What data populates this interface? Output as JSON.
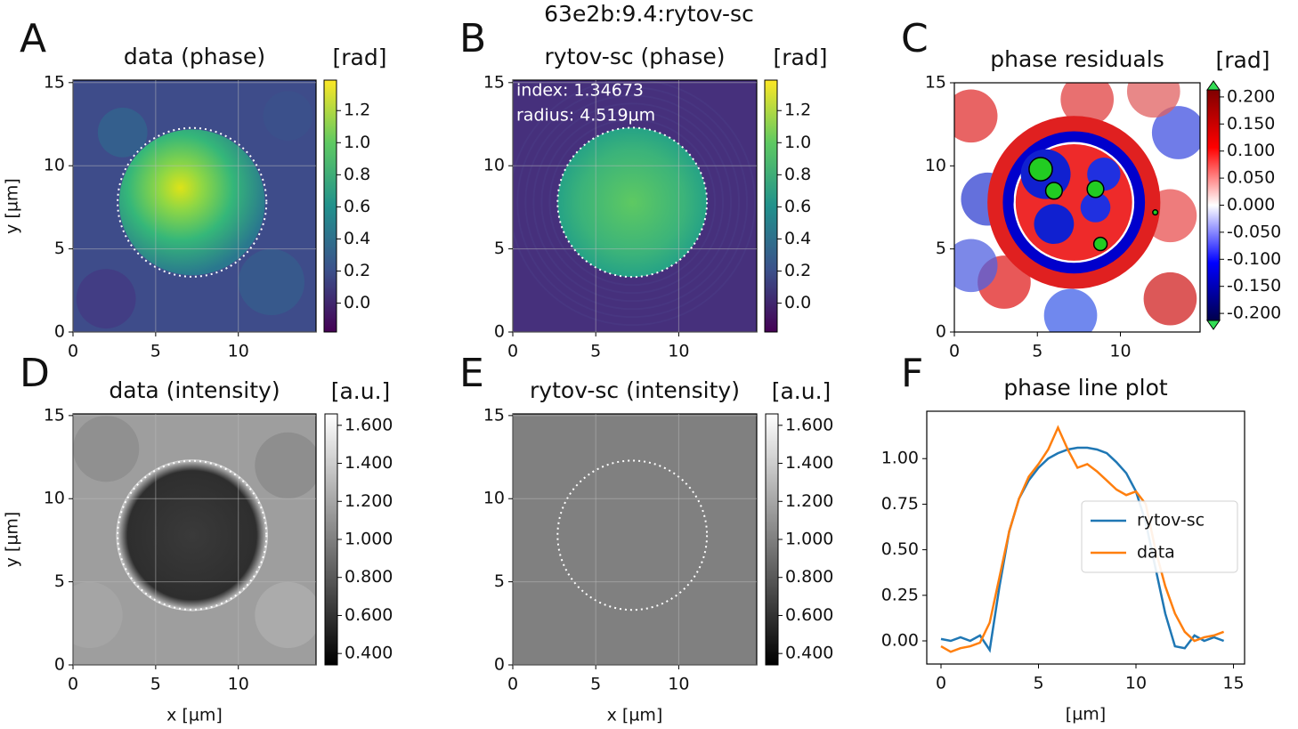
{
  "title": "63e2b:9.4:rytov-sc",
  "chart_data": [
    {
      "type": "image",
      "panel": "A",
      "title": "data (phase)",
      "ylabel": "y [µm]",
      "xlim": [
        0,
        14.7
      ],
      "ylim": [
        0,
        15.15
      ],
      "xticks": [
        0,
        5,
        10
      ],
      "yticks": [
        0,
        5,
        10,
        15
      ],
      "grid": true,
      "colormap": "viridis",
      "colorbar": {
        "label": "[rad]",
        "lim": [
          -0.18,
          1.39
        ],
        "ticks": [
          {
            "value": 0,
            "label": "0.0"
          },
          0.2,
          0.4,
          0.6,
          0.8,
          {
            "value": 1,
            "label": "1.0"
          },
          1.2
        ]
      }
    },
    {
      "type": "image",
      "panel": "B",
      "title": "rytov-sc (phase)",
      "annotations": [
        "index: 1.34673",
        "radius: 4.519µm"
      ],
      "xlim": [
        0,
        14.7
      ],
      "ylim": [
        0,
        15.15
      ],
      "xticks": [
        0,
        5,
        10
      ],
      "yticks": [
        0,
        5,
        10,
        15
      ],
      "grid": true,
      "colormap": "viridis",
      "colorbar": {
        "label": "[rad]",
        "lim": [
          -0.18,
          1.39
        ],
        "ticks": [
          {
            "value": 0,
            "label": "0.0"
          },
          0.2,
          0.4,
          0.6,
          0.8,
          {
            "value": 1,
            "label": "1.0"
          },
          1.2
        ]
      }
    },
    {
      "type": "image",
      "panel": "C",
      "title": "phase residuals",
      "xlim": [
        0,
        14.8
      ],
      "ylim": [
        0,
        15
      ],
      "xticks": [
        0,
        5,
        10
      ],
      "yticks": [
        0,
        5,
        10,
        15
      ],
      "grid": false,
      "colormap": "seismic",
      "colorbar": {
        "label": "[rad]",
        "lim": [
          -0.213,
          0.213
        ],
        "extend": "both",
        "ticks": [
          {
            "value": 0.2,
            "label": "0.200"
          },
          {
            "value": 0.15,
            "label": "0.150"
          },
          {
            "value": 0.1,
            "label": "0.100"
          },
          {
            "value": 0.05,
            "label": "0.050"
          },
          {
            "value": 0,
            "label": "0.000"
          },
          {
            "value": -0.05,
            "label": "-0.050"
          },
          {
            "value": -0.1,
            "label": "-0.100"
          },
          {
            "value": -0.15,
            "label": "-0.150"
          },
          {
            "value": -0.2,
            "label": "-0.200"
          }
        ]
      }
    },
    {
      "type": "image",
      "panel": "D",
      "title": "data (intensity)",
      "xlabel": "x [µm]",
      "ylabel": "y [µm]",
      "xlim": [
        0,
        14.7
      ],
      "ylim": [
        0,
        15.1
      ],
      "xticks": [
        0,
        5,
        10
      ],
      "yticks": [
        0,
        5,
        10,
        15
      ],
      "grid": true,
      "colormap": "gray",
      "colorbar": {
        "label": "[a.u.]",
        "lim": [
          0.34,
          1.66
        ],
        "ticks": [
          {
            "value": 1.6,
            "label": "1.600"
          },
          {
            "value": 1.4,
            "label": "1.400"
          },
          {
            "value": 1.2,
            "label": "1.200"
          },
          {
            "value": 1,
            "label": "1.000"
          },
          {
            "value": 0.8,
            "label": "0.800"
          },
          {
            "value": 0.6,
            "label": "0.600"
          },
          {
            "value": 0.4,
            "label": "0.400"
          }
        ]
      }
    },
    {
      "type": "image",
      "panel": "E",
      "title": "rytov-sc (intensity)",
      "xlabel": "x [µm]",
      "xlim": [
        0,
        14.7
      ],
      "ylim": [
        0,
        15.1
      ],
      "xticks": [
        0,
        5,
        10
      ],
      "yticks": [
        0,
        5,
        10,
        15
      ],
      "grid": true,
      "colormap": "gray",
      "colorbar": {
        "label": "[a.u.]",
        "lim": [
          0.34,
          1.66
        ],
        "ticks": [
          {
            "value": 1.6,
            "label": "1.600"
          },
          {
            "value": 1.4,
            "label": "1.400"
          },
          {
            "value": 1.2,
            "label": "1.200"
          },
          {
            "value": 1,
            "label": "1.000"
          },
          {
            "value": 0.8,
            "label": "0.800"
          },
          {
            "value": 0.6,
            "label": "0.600"
          },
          {
            "value": 0.4,
            "label": "0.400"
          }
        ]
      }
    },
    {
      "type": "line",
      "panel": "F",
      "title": "phase line plot",
      "xlabel": "[µm]",
      "xlim": [
        -0.73,
        15.57
      ],
      "ylim": [
        -0.127,
        1.26
      ],
      "xticks": [
        0,
        5,
        10,
        15
      ],
      "yticks": [
        {
          "value": 0,
          "label": "0.00"
        },
        {
          "value": 0.25,
          "label": "0.25"
        },
        {
          "value": 0.5,
          "label": "0.50"
        },
        {
          "value": 0.75,
          "label": "0.75"
        },
        {
          "value": 1,
          "label": "1.00"
        }
      ],
      "legend": "right",
      "x": [
        0,
        0.5,
        1,
        1.5,
        2,
        2.5,
        3,
        3.5,
        4,
        4.5,
        5,
        5.5,
        6,
        6.5,
        7,
        7.5,
        8,
        8.5,
        9,
        9.5,
        10,
        10.5,
        11,
        11.5,
        12,
        12.5,
        13,
        13.5,
        14,
        14.5
      ],
      "series": [
        {
          "name": "rytov-sc",
          "color": "#1f77b4",
          "values": [
            0.01,
            0.0,
            0.02,
            0.0,
            0.03,
            -0.05,
            0.3,
            0.6,
            0.78,
            0.88,
            0.95,
            1.0,
            1.03,
            1.05,
            1.06,
            1.06,
            1.05,
            1.03,
            0.98,
            0.92,
            0.82,
            0.65,
            0.4,
            0.15,
            -0.03,
            -0.04,
            0.03,
            0.0,
            0.02,
            0.0
          ]
        },
        {
          "name": "data",
          "color": "#ff7f0e",
          "values": [
            -0.03,
            -0.06,
            -0.04,
            -0.03,
            -0.01,
            0.1,
            0.35,
            0.6,
            0.78,
            0.9,
            0.97,
            1.05,
            1.17,
            1.05,
            0.95,
            0.97,
            0.93,
            0.88,
            0.83,
            0.8,
            0.82,
            0.75,
            0.5,
            0.3,
            0.15,
            0.05,
            0.0,
            0.02,
            0.03,
            0.05
          ]
        }
      ]
    }
  ]
}
